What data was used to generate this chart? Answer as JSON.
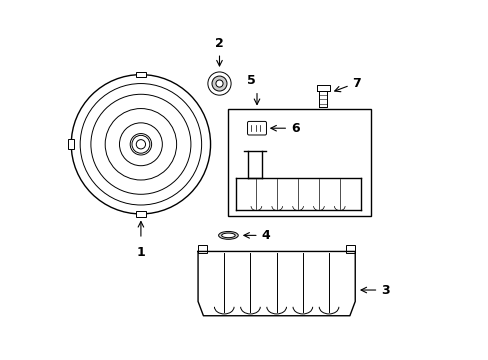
{
  "background_color": "#ffffff",
  "line_color": "#000000",
  "lw_main": 1.0,
  "lw_thin": 0.7
}
